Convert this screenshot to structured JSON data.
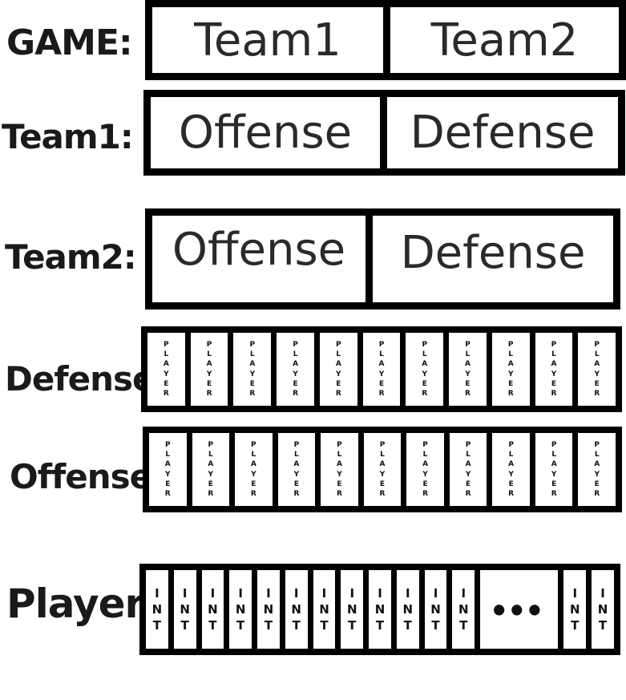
{
  "rows": {
    "game": {
      "label": "GAME:",
      "cells": [
        "Team1",
        "Team2"
      ]
    },
    "team1": {
      "label": "Team1:",
      "cells": [
        "Offense",
        "Defense"
      ]
    },
    "team2": {
      "label": "Team2:",
      "cells": [
        "Offense",
        "Defense"
      ]
    },
    "defense": {
      "label": "Defense:",
      "cell_text": "PLAYER",
      "cell_count": 11
    },
    "offense": {
      "label": "Offense:",
      "cell_text": "PLAYER",
      "cell_count": 11
    },
    "player": {
      "label": "Player:",
      "cell_text": "INT",
      "cells_before_ellipsis": 12,
      "ellipsis": "•••",
      "cells_after_ellipsis": 2
    }
  }
}
